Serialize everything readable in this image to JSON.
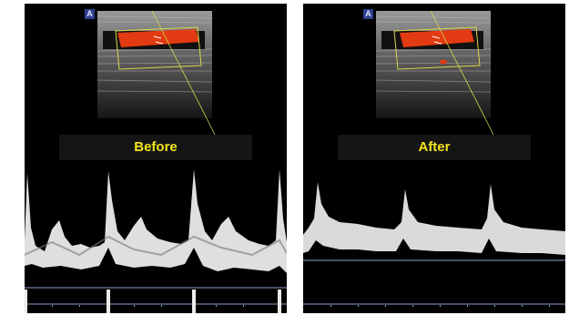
{
  "panels": [
    {
      "label": "Before"
    },
    {
      "label": "After"
    }
  ],
  "icons": {
    "mode": "A"
  },
  "colors": {
    "panel_background": "#000000",
    "label_text": "#f2e31a",
    "label_bar": "#151515",
    "color_doppler_flow": "#e23a12",
    "sample_box": "#d8d84a",
    "baseline": "#8da0c8",
    "waveform": "#ffffff"
  }
}
